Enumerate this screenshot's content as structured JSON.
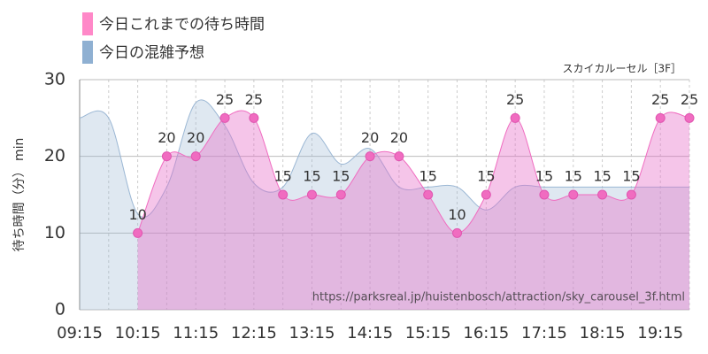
{
  "chart_data": {
    "type": "area",
    "legend": [
      "今日これまでの待ち時間",
      "今日の混雑予想"
    ],
    "subtitle": "スカイカルーセル［3F］",
    "source": "https://parksreal.jp/huistenbosch/attraction/sky_carousel_3f.html",
    "y_label": "待ち時間（分） min",
    "categories": [
      "09:15",
      null,
      "10:15",
      null,
      "11:15",
      null,
      "12:15",
      null,
      "13:15",
      null,
      "14:15",
      null,
      "15:15",
      null,
      "16:15",
      null,
      "17:15",
      null,
      "18:15",
      null,
      "19:15",
      null
    ],
    "series": [
      {
        "name": "今日の混雑予想",
        "color": "#9bb7d4",
        "values": [
          25,
          25,
          12.5,
          16,
          27,
          24,
          16.5,
          16,
          23,
          19,
          21,
          16,
          16,
          16,
          13,
          16,
          16,
          16,
          16,
          16,
          16,
          16
        ]
      },
      {
        "name": "今日これまでの待ち時間",
        "color": "#f06cc0",
        "values": [
          null,
          null,
          10,
          20,
          20,
          25,
          25,
          15,
          15,
          15,
          20,
          20,
          15,
          10,
          15,
          25,
          15,
          15,
          15,
          15,
          25,
          25
        ],
        "data_labels": true
      }
    ],
    "ylim": [
      0,
      30
    ],
    "yticks": [
      0,
      10,
      20,
      30
    ],
    "grid": true
  }
}
